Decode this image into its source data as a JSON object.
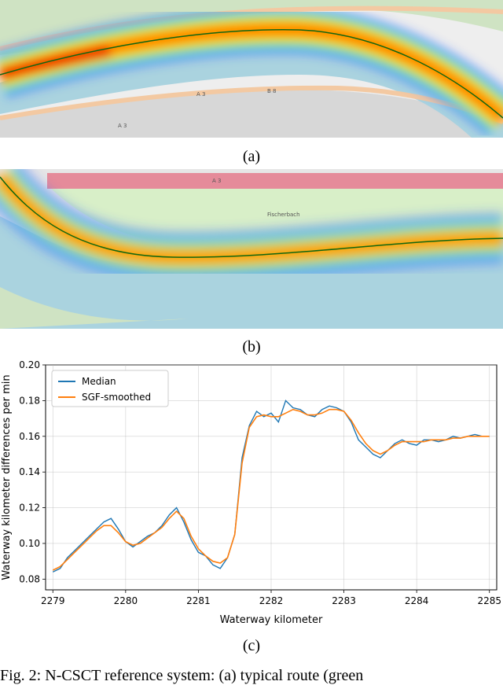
{
  "captions": {
    "a": "(a)",
    "b": "(b)",
    "c": "(c)"
  },
  "figure_caption": "Fig. 2: N-CSCT reference system: (a) typical route (green",
  "map_a": {
    "road_labels": [
      "A 3",
      "B 8",
      "A 3"
    ],
    "colors": {
      "land": "#eeeeee",
      "forest": "#cfe3c3",
      "water": "#aad3df",
      "road": "#f3c9a2",
      "track": "#116611"
    }
  },
  "map_b": {
    "road_labels": [
      "A 3",
      "Fischerbach"
    ],
    "colors": {
      "land": "#e6e6e6",
      "meadow": "#d8efc8",
      "water": "#aad3df",
      "highway": "#e58b9a",
      "track": "#116611"
    }
  },
  "chart_data": {
    "type": "line",
    "xlabel": "Waterway kilometer",
    "ylabel": "Waterway kilometer differences per min",
    "xlim": [
      2278.9,
      2285.1
    ],
    "ylim": [
      0.074,
      0.2
    ],
    "xticks": [
      2279,
      2280,
      2281,
      2282,
      2283,
      2284,
      2285
    ],
    "yticks": [
      0.08,
      0.1,
      0.12,
      0.14,
      0.16,
      0.18,
      0.2
    ],
    "ytick_labels": [
      "0.08",
      "0.10",
      "0.12",
      "0.14",
      "0.16",
      "0.18",
      "0.20"
    ],
    "grid": true,
    "legend": "top-left",
    "series": [
      {
        "name": "Median",
        "color": "#1f77b4",
        "x": [
          2279.0,
          2279.1,
          2279.2,
          2279.3,
          2279.4,
          2279.5,
          2279.6,
          2279.7,
          2279.8,
          2279.9,
          2280.0,
          2280.1,
          2280.2,
          2280.3,
          2280.4,
          2280.5,
          2280.6,
          2280.7,
          2280.8,
          2280.9,
          2281.0,
          2281.1,
          2281.2,
          2281.3,
          2281.4,
          2281.5,
          2281.6,
          2281.7,
          2281.8,
          2281.9,
          2282.0,
          2282.1,
          2282.2,
          2282.3,
          2282.4,
          2282.5,
          2282.6,
          2282.7,
          2282.8,
          2282.9,
          2283.0,
          2283.1,
          2283.2,
          2283.3,
          2283.4,
          2283.5,
          2283.6,
          2283.7,
          2283.8,
          2283.9,
          2284.0,
          2284.1,
          2284.2,
          2284.3,
          2284.4,
          2284.5,
          2284.6,
          2284.7,
          2284.8,
          2284.9,
          2285.0
        ],
        "values": [
          0.084,
          0.086,
          0.092,
          0.096,
          0.1,
          0.104,
          0.108,
          0.112,
          0.114,
          0.108,
          0.101,
          0.098,
          0.101,
          0.104,
          0.106,
          0.11,
          0.116,
          0.12,
          0.112,
          0.102,
          0.095,
          0.093,
          0.088,
          0.086,
          0.092,
          0.105,
          0.148,
          0.166,
          0.174,
          0.171,
          0.173,
          0.168,
          0.18,
          0.176,
          0.175,
          0.172,
          0.171,
          0.175,
          0.177,
          0.176,
          0.174,
          0.168,
          0.158,
          0.154,
          0.15,
          0.148,
          0.152,
          0.156,
          0.158,
          0.156,
          0.155,
          0.158,
          0.158,
          0.157,
          0.158,
          0.16,
          0.159,
          0.16,
          0.161,
          0.16,
          0.16
        ]
      },
      {
        "name": "SGF-smoothed",
        "color": "#ff7f0e",
        "x": [
          2279.0,
          2279.1,
          2279.2,
          2279.3,
          2279.4,
          2279.5,
          2279.6,
          2279.7,
          2279.8,
          2279.9,
          2280.0,
          2280.1,
          2280.2,
          2280.3,
          2280.4,
          2280.5,
          2280.6,
          2280.7,
          2280.8,
          2280.9,
          2281.0,
          2281.1,
          2281.2,
          2281.3,
          2281.4,
          2281.5,
          2281.6,
          2281.7,
          2281.8,
          2281.9,
          2282.0,
          2282.1,
          2282.2,
          2282.3,
          2282.4,
          2282.5,
          2282.6,
          2282.7,
          2282.8,
          2282.9,
          2283.0,
          2283.1,
          2283.2,
          2283.3,
          2283.4,
          2283.5,
          2283.6,
          2283.7,
          2283.8,
          2283.9,
          2284.0,
          2284.1,
          2284.2,
          2284.3,
          2284.4,
          2284.5,
          2284.6,
          2284.7,
          2284.8,
          2284.9,
          2285.0
        ],
        "values": [
          0.085,
          0.087,
          0.091,
          0.095,
          0.099,
          0.103,
          0.107,
          0.11,
          0.11,
          0.106,
          0.101,
          0.099,
          0.1,
          0.103,
          0.106,
          0.109,
          0.114,
          0.118,
          0.114,
          0.104,
          0.097,
          0.093,
          0.09,
          0.089,
          0.092,
          0.105,
          0.145,
          0.165,
          0.171,
          0.172,
          0.171,
          0.171,
          0.173,
          0.175,
          0.174,
          0.172,
          0.172,
          0.173,
          0.175,
          0.175,
          0.174,
          0.169,
          0.162,
          0.156,
          0.152,
          0.15,
          0.152,
          0.155,
          0.157,
          0.157,
          0.157,
          0.157,
          0.158,
          0.158,
          0.158,
          0.159,
          0.159,
          0.16,
          0.16,
          0.16,
          0.16
        ]
      }
    ]
  }
}
